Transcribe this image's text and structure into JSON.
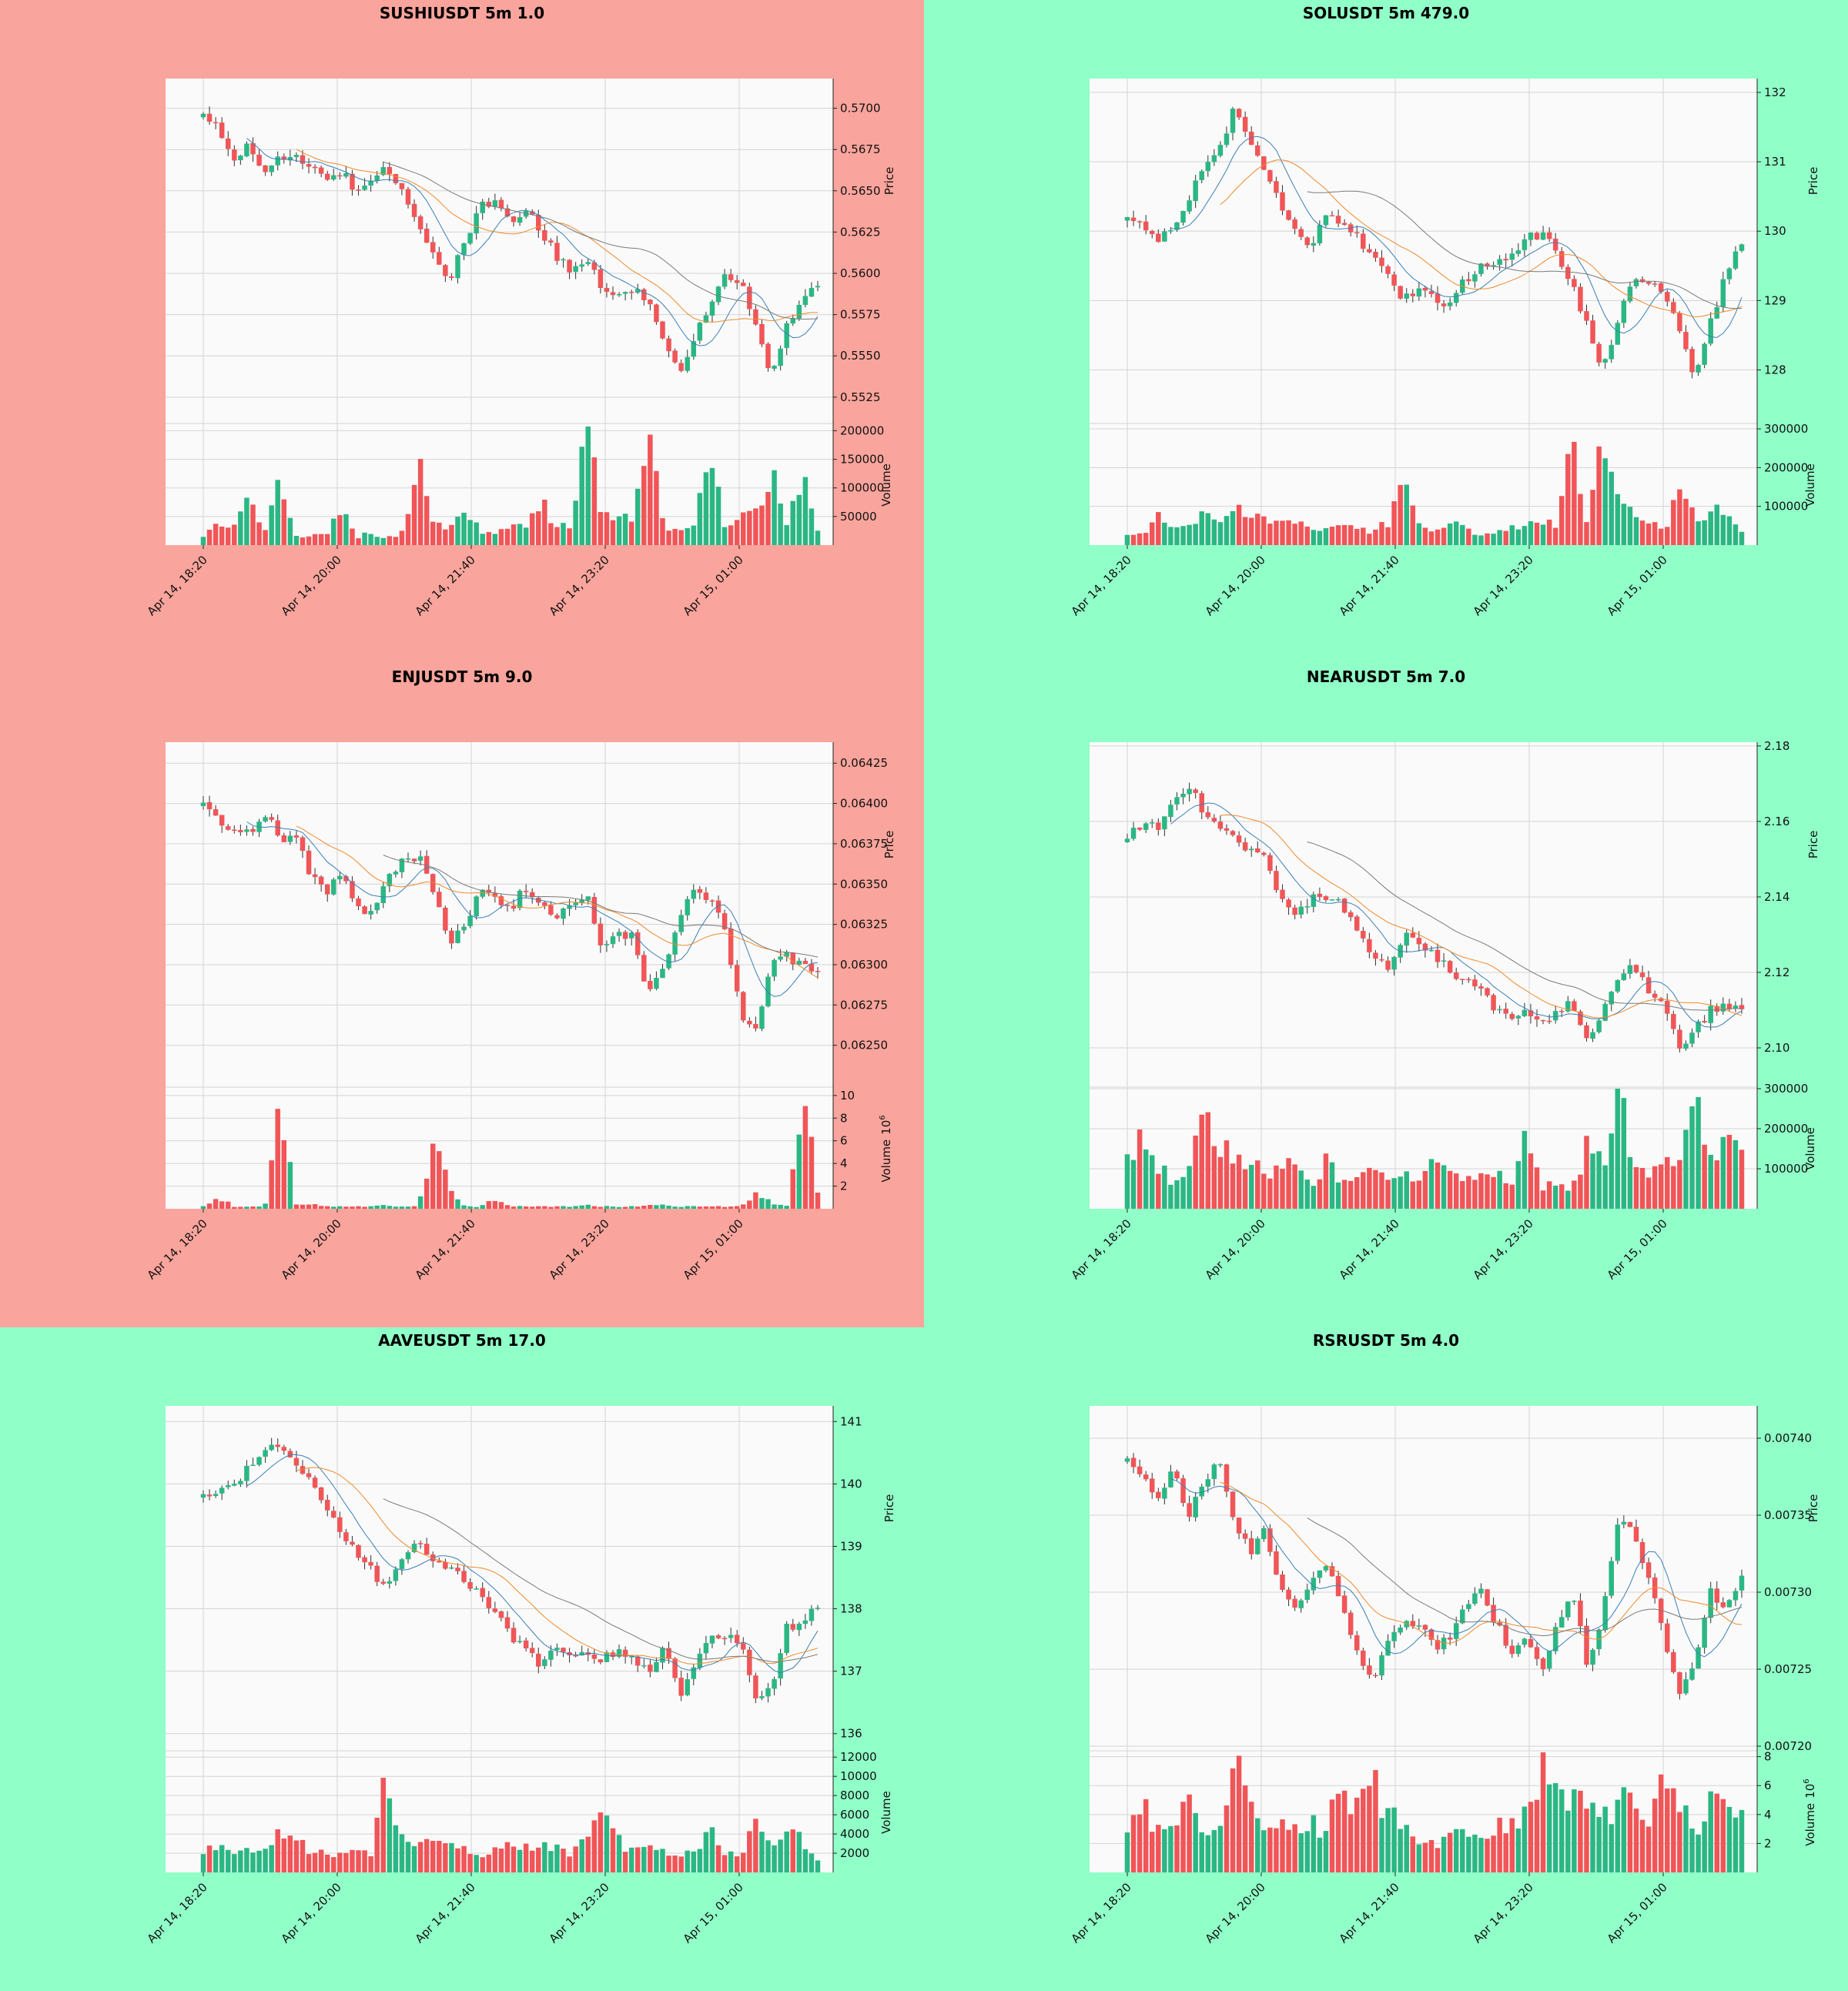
{
  "colors": {
    "red_panel": "#f9a49c",
    "green_panel": "#90ffc8",
    "plot_bg": "#fafafa",
    "up": "#2bb784",
    "down": "#f05558",
    "grid": "#d4d4d4",
    "ma1": "#3b7fb7",
    "ma2": "#ef8a2c",
    "ma3": "#7a7a7a"
  },
  "x_tick_labels": [
    "Apr 14, 18:20",
    "Apr 14, 20:00",
    "Apr 14, 21:40",
    "Apr 14, 23:20",
    "Apr 15, 01:00"
  ],
  "chart_data": [
    {
      "type": "candlestick",
      "title": "SUSHIUSDT 5m 1.0",
      "background": "red_panel",
      "ylabel": "Price",
      "volume_label": "Volume",
      "y_ticks": [
        "0.5525",
        "0.5550",
        "0.5575",
        "0.5600",
        "0.5625",
        "0.5650",
        "0.5675",
        "0.5700"
      ],
      "ylim": [
        0.551,
        0.5718
      ],
      "volume_ticks": [
        "50000",
        "100000",
        "150000",
        "200000"
      ],
      "volume_ylim": [
        0,
        210000
      ],
      "price_path": [
        0.5697,
        0.569,
        0.5665,
        0.568,
        0.5658,
        0.567,
        0.5672,
        0.5664,
        0.5655,
        0.5662,
        0.565,
        0.566,
        0.5665,
        0.5648,
        0.563,
        0.5612,
        0.5595,
        0.5618,
        0.564,
        0.5642,
        0.5632,
        0.564,
        0.5625,
        0.561,
        0.56,
        0.5606,
        0.5592,
        0.5585,
        0.559,
        0.5582,
        0.556,
        0.5538,
        0.5562,
        0.5582,
        0.56,
        0.5596,
        0.5565,
        0.5538,
        0.5568,
        0.5588,
        0.5592
      ],
      "volume_path": [
        15000,
        40000,
        30000,
        80000,
        25000,
        110000,
        15000,
        20000,
        18000,
        70000,
        15000,
        20000,
        15000,
        22000,
        157000,
        40000,
        30000,
        70000,
        25000,
        18000,
        35000,
        30000,
        85000,
        30000,
        35000,
        210000,
        40000,
        65000,
        45000,
        193000,
        35000,
        30000,
        45000,
        188000,
        30000,
        50000,
        58000,
        130000,
        35000,
        120000,
        25000
      ]
    },
    {
      "type": "candlestick",
      "title": "SOLUSDT 5m 479.0",
      "background": "green_panel",
      "ylabel": "Price",
      "volume_label": "Volume",
      "y_ticks": [
        "128",
        "129",
        "130",
        "131",
        "132"
      ],
      "ylim": [
        127.25,
        132.2
      ],
      "volume_ticks": [
        "100000",
        "200000",
        "300000"
      ],
      "volume_ylim": [
        0,
        310000
      ],
      "price_path": [
        130.2,
        130.1,
        129.9,
        130.0,
        130.5,
        130.9,
        131.2,
        131.8,
        131.3,
        130.8,
        130.4,
        130.0,
        129.8,
        130.3,
        130.1,
        129.9,
        129.6,
        129.3,
        129.0,
        129.2,
        129.05,
        128.95,
        129.3,
        129.5,
        129.55,
        129.7,
        129.9,
        129.95,
        129.7,
        129.2,
        128.6,
        128.0,
        128.8,
        129.3,
        129.3,
        129.1,
        128.5,
        127.9,
        128.7,
        129.4,
        129.8
      ],
      "volume_path": [
        25000,
        30000,
        70000,
        40000,
        60000,
        80000,
        50000,
        90000,
        70000,
        60000,
        50000,
        70000,
        40000,
        55000,
        50000,
        45000,
        35000,
        60000,
        150000,
        45000,
        35000,
        55000,
        40000,
        30000,
        35000,
        45000,
        60000,
        70000,
        40000,
        260000,
        50000,
        300000,
        90000,
        80000,
        70000,
        45000,
        140000,
        60000,
        75000,
        100000,
        35000
      ]
    },
    {
      "type": "candlestick",
      "title": "ENJUSDT 5m 9.0",
      "background": "red_panel",
      "ylabel": "Price",
      "volume_label": "Volume",
      "volume_multiplier": "10^6",
      "y_ticks": [
        "0.06250",
        "0.06275",
        "0.06300",
        "0.06325",
        "0.06350",
        "0.06375",
        "0.06400",
        "0.06425"
      ],
      "ylim": [
        0.06225,
        0.06438
      ],
      "volume_ticks": [
        "2",
        "4",
        "6",
        "8",
        "10"
      ],
      "volume_ylim": [
        0,
        10.6
      ],
      "price_path": [
        0.064,
        0.06388,
        0.06385,
        0.06382,
        0.06395,
        0.06378,
        0.0638,
        0.06355,
        0.06345,
        0.06358,
        0.06335,
        0.0633,
        0.06355,
        0.06365,
        0.06368,
        0.06345,
        0.0631,
        0.06325,
        0.06345,
        0.0634,
        0.06335,
        0.06348,
        0.06335,
        0.0633,
        0.0634,
        0.06342,
        0.0631,
        0.06318,
        0.0632,
        0.0628,
        0.063,
        0.0633,
        0.06345,
        0.0634,
        0.0632,
        0.0627,
        0.0626,
        0.063,
        0.06305,
        0.063,
        0.06295
      ],
      "volume_path": [
        0.2,
        1.0,
        0.2,
        0.2,
        0.2,
        9.5,
        0.3,
        0.5,
        0.2,
        0.2,
        0.2,
        0.2,
        0.3,
        0.2,
        0.2,
        6.3,
        1.7,
        0.2,
        0.2,
        0.8,
        0.2,
        0.2,
        0.2,
        0.2,
        0.2,
        0.3,
        0.2,
        0.2,
        0.2,
        0.3,
        0.3,
        0.2,
        0.2,
        0.2,
        0.2,
        0.2,
        1.5,
        0.5,
        0.3,
        10.5,
        1.5
      ]
    },
    {
      "type": "candlestick",
      "title": "NEARUSDT 5m 7.0",
      "background": "green_panel",
      "ylabel": "Price",
      "volume_label": "Volume",
      "y_ticks": [
        "2.10",
        "2.12",
        "2.14",
        "2.16",
        "2.18"
      ],
      "ylim": [
        2.09,
        2.181
      ],
      "volume_ticks": [
        "100000",
        "200000",
        "300000"
      ],
      "volume_ylim": [
        0,
        300000
      ],
      "price_path": [
        2.155,
        2.16,
        2.158,
        2.165,
        2.17,
        2.162,
        2.158,
        2.156,
        2.152,
        2.15,
        2.14,
        2.135,
        2.14,
        2.14,
        2.138,
        2.13,
        2.125,
        2.12,
        2.13,
        2.128,
        2.125,
        2.12,
        2.118,
        2.115,
        2.11,
        2.108,
        2.11,
        2.106,
        2.11,
        2.112,
        2.1,
        2.11,
        2.118,
        2.122,
        2.115,
        2.11,
        2.1,
        2.105,
        2.11,
        2.112,
        2.11
      ],
      "volume_path": [
        110000,
        220000,
        100000,
        70000,
        80000,
        250000,
        170000,
        100000,
        140000,
        80000,
        90000,
        120000,
        60000,
        130000,
        70000,
        80000,
        90000,
        60000,
        110000,
        70000,
        130000,
        90000,
        60000,
        100000,
        90000,
        70000,
        170000,
        60000,
        70000,
        50000,
        170000,
        120000,
        300000,
        90000,
        100000,
        110000,
        130000,
        270000,
        120000,
        150000,
        160000
      ]
    },
    {
      "type": "candlestick",
      "title": "AAVEUSDT 5m 17.0",
      "background": "green_panel",
      "ylabel": "Price",
      "volume_label": "Volume",
      "y_ticks": [
        "136",
        "137",
        "138",
        "139",
        "140",
        "141"
      ],
      "ylim": [
        135.75,
        141.25
      ],
      "volume_ticks": [
        "2000",
        "4000",
        "6000",
        "8000",
        "10000",
        "12000"
      ],
      "volume_ylim": [
        0,
        12500
      ],
      "price_path": [
        139.8,
        139.9,
        140.0,
        140.3,
        140.6,
        140.5,
        140.3,
        140.0,
        139.6,
        139.2,
        138.9,
        138.6,
        138.3,
        138.8,
        139.1,
        138.8,
        138.6,
        138.5,
        138.2,
        137.9,
        137.6,
        137.3,
        137.1,
        137.4,
        137.3,
        137.2,
        137.2,
        137.3,
        137.2,
        137.0,
        137.4,
        136.6,
        137.1,
        137.6,
        137.5,
        137.5,
        136.6,
        136.8,
        137.7,
        137.8,
        138.0
      ],
      "volume_path": [
        2300,
        2400,
        2000,
        2200,
        2000,
        4900,
        4000,
        2200,
        1900,
        2300,
        2300,
        2200,
        10800,
        2600,
        3200,
        3200,
        2600,
        2400,
        2000,
        2300,
        3000,
        2800,
        2600,
        2500,
        1800,
        4100,
        5400,
        3200,
        2500,
        2400,
        2300,
        2200,
        2000,
        4000,
        2200,
        1800,
        6500,
        2400,
        5300,
        3000,
        1400
      ]
    },
    {
      "type": "candlestick",
      "title": "RSRUSDT 5m 4.0",
      "background": "green_panel",
      "ylabel": "Price",
      "volume_label": "Volume",
      "volume_multiplier": "10^6",
      "y_ticks": [
        "0.00720",
        "0.00725",
        "0.00730",
        "0.00735",
        "0.00740"
      ],
      "ylim": [
        0.007198,
        0.007421
      ],
      "volume_ticks": [
        "2",
        "4",
        "6",
        "8"
      ],
      "volume_ylim": [
        0,
        8.3
      ],
      "price_path": [
        0.007385,
        0.007375,
        0.00736,
        0.00738,
        0.00735,
        0.00737,
        0.007385,
        0.007345,
        0.007325,
        0.00734,
        0.0073,
        0.00729,
        0.00731,
        0.00732,
        0.00729,
        0.00726,
        0.00724,
        0.00727,
        0.00728,
        0.00728,
        0.007265,
        0.00727,
        0.00729,
        0.0073,
        0.00728,
        0.00726,
        0.00727,
        0.007245,
        0.00728,
        0.0073,
        0.00725,
        0.00729,
        0.00735,
        0.007335,
        0.00731,
        0.00727,
        0.00723,
        0.00726,
        0.0073,
        0.00729,
        0.00731
      ],
      "volume_path": [
        3.0,
        4.5,
        3.2,
        3.0,
        5.0,
        2.5,
        3.2,
        7.5,
        4.5,
        3.5,
        4.0,
        3.0,
        3.2,
        3.2,
        6.0,
        4.8,
        6.0,
        4.0,
        3.0,
        2.5,
        1.8,
        2.5,
        3.5,
        2.5,
        3.0,
        3.8,
        4.0,
        7.8,
        5.0,
        4.8,
        4.5,
        3.5,
        5.0,
        5.3,
        4.0,
        6.0,
        5.0,
        2.8,
        5.5,
        4.0,
        5.0
      ]
    }
  ]
}
